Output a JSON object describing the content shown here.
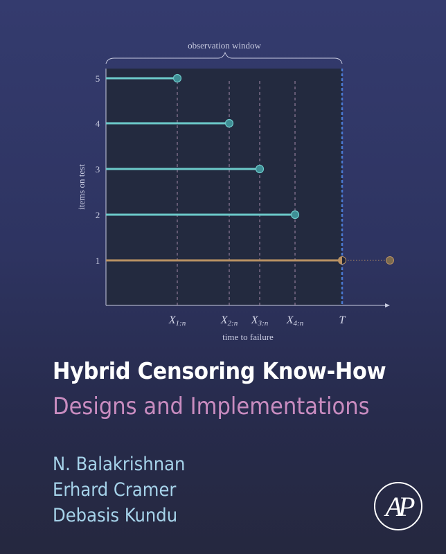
{
  "diagram": {
    "brace_label": "observation window",
    "y_axis_label": "items on test",
    "x_axis_label": "time to failure",
    "y_ticks": [
      "1",
      "2",
      "3",
      "4",
      "5"
    ],
    "x_ticks": [
      {
        "main": "X",
        "sub": "1:n"
      },
      {
        "main": "X",
        "sub": "2:n"
      },
      {
        "main": "X",
        "sub": "3:n"
      },
      {
        "main": "X",
        "sub": "4:n"
      },
      {
        "main": "T",
        "sub": ""
      }
    ],
    "colors": {
      "failed": "#6ccaca",
      "censored": "#b99163",
      "threshold": "#4a78d0",
      "plot_bg": "#232a3f"
    }
  },
  "book": {
    "title": "Hybrid Censoring Know-How",
    "subtitle": "Designs and Implementations",
    "authors": [
      "N. Balakrishnan",
      "Erhard Cramer",
      "Debasis Kundu"
    ],
    "publisher_logo": "AP"
  }
}
